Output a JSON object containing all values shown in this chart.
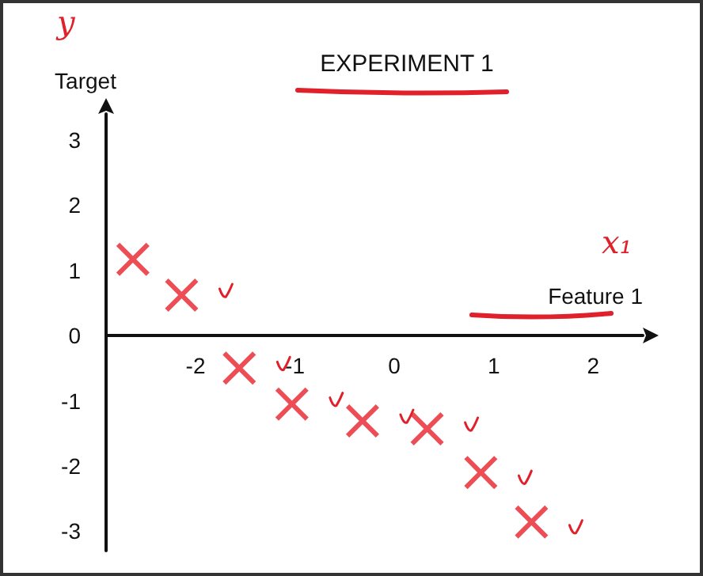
{
  "chart_data": {
    "type": "scatter",
    "title": "EXPERIMENT 1",
    "xlabel": "Feature 1",
    "ylabel": "Target",
    "annotations": [
      "y",
      "x₁"
    ],
    "x": [
      -2.63,
      -2.14,
      -1.56,
      -1.03,
      -0.32,
      0.33,
      0.87,
      1.38
    ],
    "series": [
      {
        "color": "#e8212b",
        "values": [
          1.17,
          0.62,
          -0.5,
          -1.05,
          -1.31,
          -1.43,
          -2.1,
          -2.86
        ]
      }
    ],
    "xlim": [
      -2.9,
      2.5
    ],
    "ylim": [
      -3.3,
      3.4
    ],
    "xticks": [
      -2,
      -1,
      0,
      1,
      2
    ],
    "yticks": [
      -3,
      -2,
      -1,
      0,
      1,
      2,
      3
    ],
    "marker": "cross",
    "grid": false
  }
}
